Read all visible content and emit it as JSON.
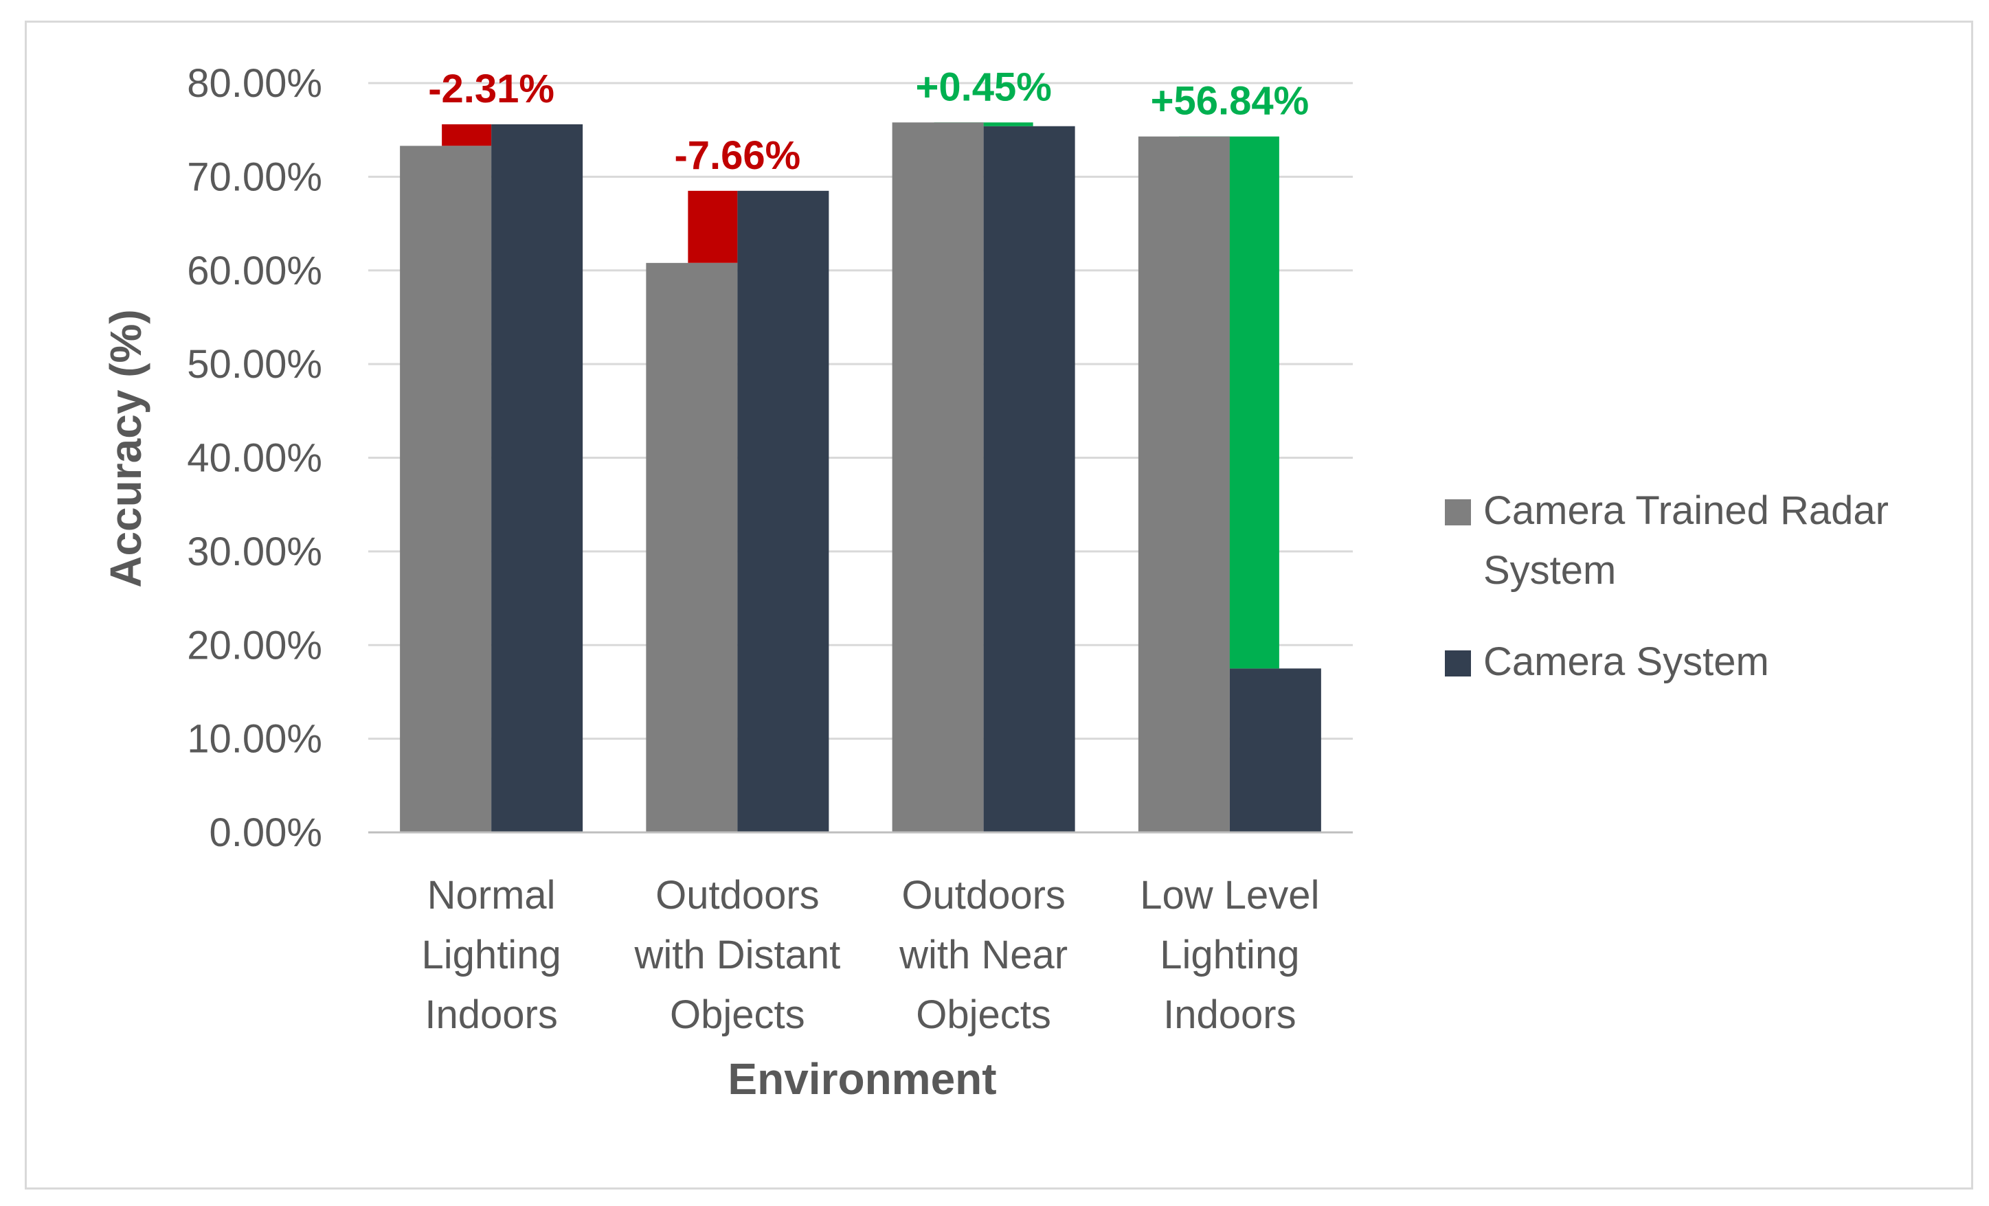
{
  "chart_data": {
    "type": "bar",
    "xlabel": "Environment",
    "ylabel": "Accuracy (%)",
    "ylim": [
      0,
      80
    ],
    "yticks": [
      "0.00%",
      "10.00%",
      "20.00%",
      "30.00%",
      "40.00%",
      "50.00%",
      "60.00%",
      "70.00%",
      "80.00%"
    ],
    "categories": [
      [
        "Normal",
        "Lighting",
        "Indoors"
      ],
      [
        "Outdoors",
        "with Distant",
        "Objects"
      ],
      [
        "Outdoors",
        "with Near",
        "Objects"
      ],
      [
        "Low Level",
        "Lighting",
        "Indoors"
      ]
    ],
    "series": [
      {
        "name": "Camera Trained Radar System",
        "legend_lines": [
          "Camera Trained Radar",
          "System"
        ],
        "color": "#7f7f7f",
        "values": [
          73.3,
          60.8,
          75.8,
          74.3
        ]
      },
      {
        "name": "Camera System",
        "legend_lines": [
          "Camera System"
        ],
        "color": "#333f50",
        "values": [
          75.6,
          68.5,
          75.4,
          17.5
        ]
      }
    ],
    "differences": [
      {
        "label": "-2.31%",
        "value": -2.31,
        "color": "#c00000"
      },
      {
        "label": "-7.66%",
        "value": -7.66,
        "color": "#c00000"
      },
      {
        "label": "+0.45%",
        "value": 0.45,
        "color": "#00b050"
      },
      {
        "label": "+56.84%",
        "value": 56.84,
        "color": "#00b050"
      }
    ],
    "grid": true,
    "legend_position": "right"
  }
}
